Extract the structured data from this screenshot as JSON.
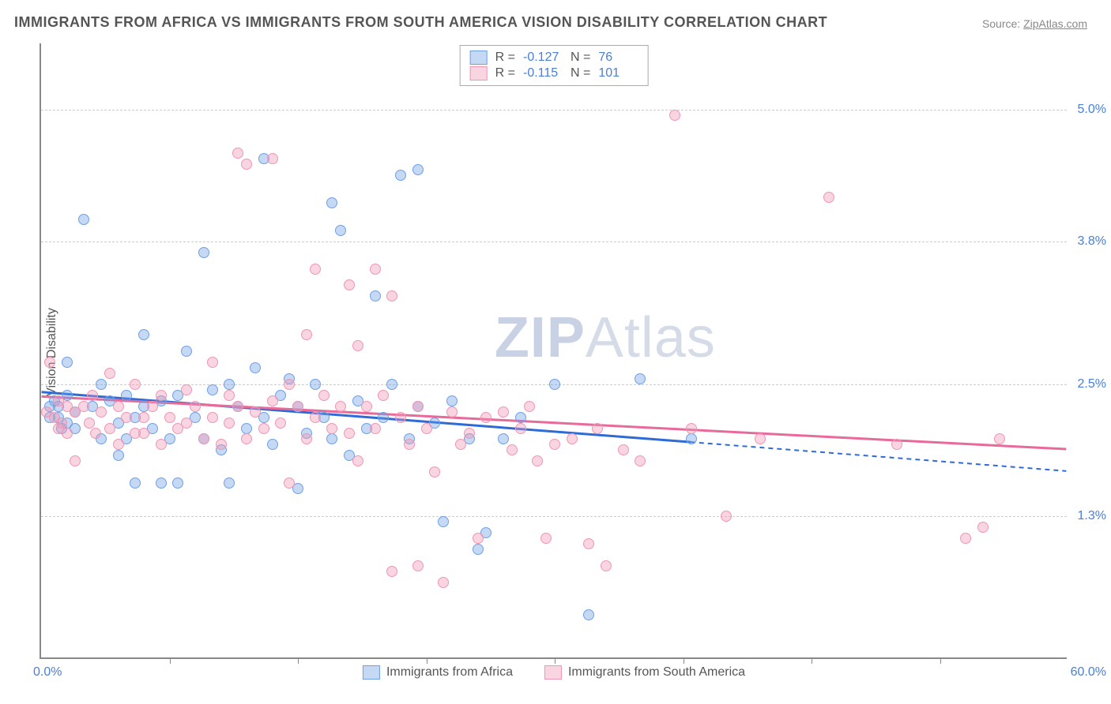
{
  "title": "IMMIGRANTS FROM AFRICA VS IMMIGRANTS FROM SOUTH AMERICA VISION DISABILITY CORRELATION CHART",
  "source_label": "Source: ",
  "source_name": "ZipAtlas.com",
  "ylabel": "Vision Disability",
  "watermark_zip": "ZIP",
  "watermark_atlas": "Atlas",
  "chart": {
    "type": "scatter",
    "xlim": [
      0,
      60
    ],
    "ylim": [
      0,
      5.6
    ],
    "x_min_label": "0.0%",
    "x_max_label": "60.0%",
    "y_ticks": [
      1.3,
      2.5,
      3.8,
      5.0
    ],
    "y_tick_labels": [
      "1.3%",
      "2.5%",
      "3.8%",
      "5.0%"
    ],
    "x_tick_positions": [
      7.5,
      15,
      22.5,
      30,
      37.5,
      45,
      52.5
    ],
    "grid_color": "#cccccc",
    "axis_color": "#888888",
    "background_color": "#ffffff",
    "series": [
      {
        "name": "Immigrants from Africa",
        "color_fill": "rgba(110,160,230,0.4)",
        "color_stroke": "#6ea0e6",
        "R": "-0.127",
        "N": "76",
        "trend": {
          "y_at_x0": 2.42,
          "y_at_x60": 1.7,
          "solid_until_x": 38,
          "line_color": "#2e6bd6"
        },
        "points": [
          [
            0.5,
            2.3
          ],
          [
            0.5,
            2.2
          ],
          [
            0.8,
            2.35
          ],
          [
            1,
            2.2
          ],
          [
            1,
            2.3
          ],
          [
            1.2,
            2.1
          ],
          [
            1.5,
            2.4
          ],
          [
            1.5,
            2.15
          ],
          [
            1.5,
            2.7
          ],
          [
            2,
            2.25
          ],
          [
            2,
            2.1
          ],
          [
            2.5,
            4.0
          ],
          [
            3,
            2.3
          ],
          [
            3.5,
            2.5
          ],
          [
            3.5,
            2.0
          ],
          [
            4,
            2.35
          ],
          [
            4.5,
            2.15
          ],
          [
            4.5,
            1.85
          ],
          [
            5,
            2.4
          ],
          [
            5,
            2.0
          ],
          [
            5.5,
            2.2
          ],
          [
            5.5,
            1.6
          ],
          [
            6,
            2.95
          ],
          [
            6,
            2.3
          ],
          [
            6.5,
            2.1
          ],
          [
            7,
            1.6
          ],
          [
            7,
            2.35
          ],
          [
            7.5,
            2.0
          ],
          [
            8,
            2.4
          ],
          [
            8,
            1.6
          ],
          [
            8.5,
            2.8
          ],
          [
            9,
            2.2
          ],
          [
            9.5,
            3.7
          ],
          [
            9.5,
            2.0
          ],
          [
            10,
            2.45
          ],
          [
            10.5,
            1.9
          ],
          [
            11,
            2.5
          ],
          [
            11,
            1.6
          ],
          [
            11.5,
            2.3
          ],
          [
            12,
            2.1
          ],
          [
            12.5,
            2.65
          ],
          [
            13,
            4.55
          ],
          [
            13,
            2.2
          ],
          [
            13.5,
            1.95
          ],
          [
            14,
            2.4
          ],
          [
            14.5,
            2.55
          ],
          [
            15,
            2.3
          ],
          [
            15,
            1.55
          ],
          [
            15.5,
            2.05
          ],
          [
            16,
            2.5
          ],
          [
            16.5,
            2.2
          ],
          [
            17,
            4.15
          ],
          [
            17,
            2.0
          ],
          [
            17.5,
            3.9
          ],
          [
            18,
            1.85
          ],
          [
            18.5,
            2.35
          ],
          [
            19,
            2.1
          ],
          [
            19.5,
            3.3
          ],
          [
            20,
            2.2
          ],
          [
            20.5,
            2.5
          ],
          [
            21,
            4.4
          ],
          [
            21.5,
            2.0
          ],
          [
            22,
            4.45
          ],
          [
            22,
            2.3
          ],
          [
            23,
            2.15
          ],
          [
            23.5,
            1.25
          ],
          [
            24,
            2.35
          ],
          [
            25,
            2.0
          ],
          [
            25.5,
            1.0
          ],
          [
            26,
            1.15
          ],
          [
            27,
            2.0
          ],
          [
            28,
            2.2
          ],
          [
            30,
            2.5
          ],
          [
            32,
            0.4
          ],
          [
            35,
            2.55
          ],
          [
            38,
            2.0
          ]
        ]
      },
      {
        "name": "Immigrants from South America",
        "color_fill": "rgba(240,150,180,0.4)",
        "color_stroke": "#f096b4",
        "R": "-0.115",
        "N": "101",
        "trend": {
          "y_at_x0": 2.38,
          "y_at_x60": 1.9,
          "solid_until_x": 60,
          "line_color": "#e86a9a"
        },
        "points": [
          [
            0.3,
            2.25
          ],
          [
            0.5,
            2.7
          ],
          [
            0.8,
            2.2
          ],
          [
            1,
            2.35
          ],
          [
            1,
            2.1
          ],
          [
            1.2,
            2.15
          ],
          [
            1.5,
            2.3
          ],
          [
            1.5,
            2.05
          ],
          [
            2,
            2.25
          ],
          [
            2,
            1.8
          ],
          [
            2.5,
            2.3
          ],
          [
            2.8,
            2.15
          ],
          [
            3,
            2.4
          ],
          [
            3.2,
            2.05
          ],
          [
            3.5,
            2.25
          ],
          [
            4,
            2.1
          ],
          [
            4,
            2.6
          ],
          [
            4.5,
            2.3
          ],
          [
            4.5,
            1.95
          ],
          [
            5,
            2.2
          ],
          [
            5.5,
            2.05
          ],
          [
            5.5,
            2.5
          ],
          [
            6,
            2.2
          ],
          [
            6,
            2.05
          ],
          [
            6.5,
            2.3
          ],
          [
            7,
            1.95
          ],
          [
            7,
            2.4
          ],
          [
            7.5,
            2.2
          ],
          [
            8,
            2.1
          ],
          [
            8.5,
            2.45
          ],
          [
            8.5,
            2.15
          ],
          [
            9,
            2.3
          ],
          [
            9.5,
            2.0
          ],
          [
            10,
            2.2
          ],
          [
            10,
            2.7
          ],
          [
            10.5,
            1.95
          ],
          [
            11,
            2.4
          ],
          [
            11,
            2.15
          ],
          [
            11.5,
            4.6
          ],
          [
            11.5,
            2.3
          ],
          [
            12,
            4.5
          ],
          [
            12,
            2.0
          ],
          [
            12.5,
            2.25
          ],
          [
            13,
            2.1
          ],
          [
            13.5,
            4.55
          ],
          [
            13.5,
            2.35
          ],
          [
            14,
            2.15
          ],
          [
            14.5,
            2.5
          ],
          [
            14.5,
            1.6
          ],
          [
            15,
            2.3
          ],
          [
            15.5,
            2.95
          ],
          [
            15.5,
            2.0
          ],
          [
            16,
            3.55
          ],
          [
            16,
            2.2
          ],
          [
            16.5,
            2.4
          ],
          [
            17,
            2.1
          ],
          [
            17.5,
            2.3
          ],
          [
            18,
            3.4
          ],
          [
            18,
            2.05
          ],
          [
            18.5,
            2.85
          ],
          [
            18.5,
            1.8
          ],
          [
            19,
            2.3
          ],
          [
            19.5,
            3.55
          ],
          [
            19.5,
            2.1
          ],
          [
            20,
            2.4
          ],
          [
            20.5,
            3.3
          ],
          [
            20.5,
            0.8
          ],
          [
            21,
            2.2
          ],
          [
            21.5,
            1.95
          ],
          [
            22,
            2.3
          ],
          [
            22,
            0.85
          ],
          [
            22.5,
            2.1
          ],
          [
            23,
            1.7
          ],
          [
            23.5,
            0.7
          ],
          [
            24,
            2.25
          ],
          [
            24.5,
            1.95
          ],
          [
            25,
            2.05
          ],
          [
            25.5,
            1.1
          ],
          [
            26,
            2.2
          ],
          [
            27,
            2.25
          ],
          [
            27.5,
            1.9
          ],
          [
            28,
            2.1
          ],
          [
            28.5,
            2.3
          ],
          [
            29,
            1.8
          ],
          [
            29.5,
            1.1
          ],
          [
            30,
            1.95
          ],
          [
            31,
            2.0
          ],
          [
            32,
            1.05
          ],
          [
            32.5,
            2.1
          ],
          [
            33,
            0.85
          ],
          [
            34,
            1.9
          ],
          [
            35,
            1.8
          ],
          [
            37,
            4.95
          ],
          [
            38,
            2.1
          ],
          [
            40,
            1.3
          ],
          [
            42,
            2.0
          ],
          [
            46,
            4.2
          ],
          [
            50,
            1.95
          ],
          [
            54,
            1.1
          ],
          [
            55,
            1.2
          ],
          [
            56,
            2.0
          ]
        ]
      }
    ]
  },
  "stats_box": {
    "R_label": "R =",
    "N_label": "N ="
  }
}
